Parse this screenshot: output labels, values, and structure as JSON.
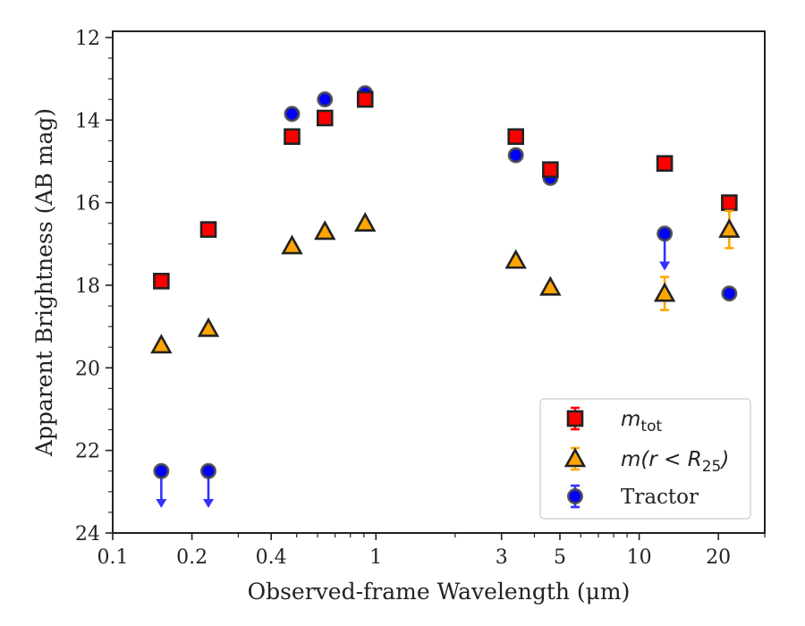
{
  "chart_data": {
    "type": "scatter",
    "xlabel": "Observed-frame Wavelength (μm)",
    "ylabel": "Apparent Brightness (AB mag)",
    "x_scale": "log",
    "xlim": [
      0.1,
      30
    ],
    "ylim": [
      24,
      11.85
    ],
    "y_inverted": true,
    "x_ticks": [
      0.1,
      0.2,
      0.4,
      1,
      3,
      5,
      10,
      20
    ],
    "x_tick_labels": [
      "0.1",
      "0.2",
      "0.4",
      "1",
      "3",
      "5",
      "10",
      "20"
    ],
    "y_ticks": [
      12,
      14,
      16,
      18,
      20,
      22,
      24
    ],
    "y_tick_labels": [
      "12",
      "14",
      "16",
      "18",
      "20",
      "22",
      "24"
    ],
    "grid": false,
    "legend_position": "lower-right",
    "series": [
      {
        "name": "m_tot",
        "legend_label": "m",
        "legend_sub": "tot",
        "marker": "square",
        "color": "#ff0000",
        "points": [
          {
            "x": 0.153,
            "y": 17.9
          },
          {
            "x": 0.231,
            "y": 16.65
          },
          {
            "x": 0.48,
            "y": 14.4
          },
          {
            "x": 0.64,
            "y": 13.95
          },
          {
            "x": 0.91,
            "y": 13.5
          },
          {
            "x": 3.4,
            "y": 14.4
          },
          {
            "x": 4.6,
            "y": 15.2
          },
          {
            "x": 12.5,
            "y": 15.05
          },
          {
            "x": 22.0,
            "y": 16.0
          }
        ]
      },
      {
        "name": "m(r < R25)",
        "legend_label": "m(r < R",
        "legend_sub": "25",
        "legend_suffix": ")",
        "marker": "triangle",
        "color": "#ffa500",
        "points": [
          {
            "x": 0.153,
            "y": 19.45
          },
          {
            "x": 0.231,
            "y": 19.05
          },
          {
            "x": 0.48,
            "y": 17.05
          },
          {
            "x": 0.64,
            "y": 16.7
          },
          {
            "x": 0.91,
            "y": 16.5
          },
          {
            "x": 3.4,
            "y": 17.4
          },
          {
            "x": 4.6,
            "y": 18.05
          },
          {
            "x": 12.5,
            "y": 18.2,
            "err": 0.4
          },
          {
            "x": 22.0,
            "y": 16.65,
            "err": 0.45
          }
        ]
      },
      {
        "name": "Tractor",
        "legend_label": "Tractor",
        "marker": "circle",
        "color": "#0000ff",
        "points": [
          {
            "x": 0.153,
            "y": 22.5,
            "upper_limit": true
          },
          {
            "x": 0.231,
            "y": 22.5,
            "upper_limit": true
          },
          {
            "x": 0.48,
            "y": 13.85
          },
          {
            "x": 0.64,
            "y": 13.5
          },
          {
            "x": 0.91,
            "y": 13.35
          },
          {
            "x": 3.4,
            "y": 14.85
          },
          {
            "x": 4.6,
            "y": 15.4
          },
          {
            "x": 12.5,
            "y": 16.75,
            "upper_limit": true
          },
          {
            "x": 22.0,
            "y": 18.2
          }
        ]
      }
    ]
  }
}
